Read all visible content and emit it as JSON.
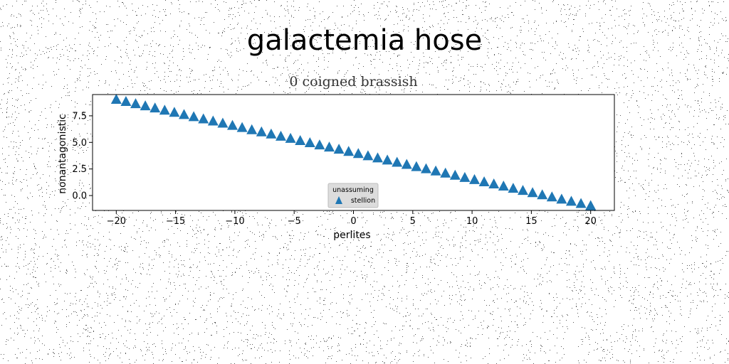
{
  "title": "galactemia hose",
  "chart_data": {
    "type": "scatter",
    "title": "0 coigned brassish",
    "xlabel": "perlites",
    "ylabel": "nonantagonistic",
    "xlim": [
      -22,
      22
    ],
    "ylim": [
      -1.4,
      9.5
    ],
    "xticks": [
      -20,
      -15,
      -10,
      -5,
      0,
      5,
      10,
      15,
      20
    ],
    "yticks": [
      0.0,
      2.5,
      5.0,
      7.5
    ],
    "xtick_labels": [
      "−20",
      "−15",
      "−10",
      "−5",
      "0",
      "5",
      "10",
      "15",
      "20"
    ],
    "ytick_labels": [
      "0.0",
      "2.5",
      "5.0",
      "7.5"
    ],
    "grid": false,
    "legend": {
      "title": "unassuming",
      "placement": "lower-center",
      "entries": [
        "stellion"
      ]
    },
    "series": [
      {
        "name": "stellion",
        "marker": "triangle-up",
        "color": "#1f77b4",
        "x_start": -20,
        "x_end": 20,
        "count": 50,
        "y_start": 9.0,
        "y_end": -1.0
      }
    ]
  }
}
